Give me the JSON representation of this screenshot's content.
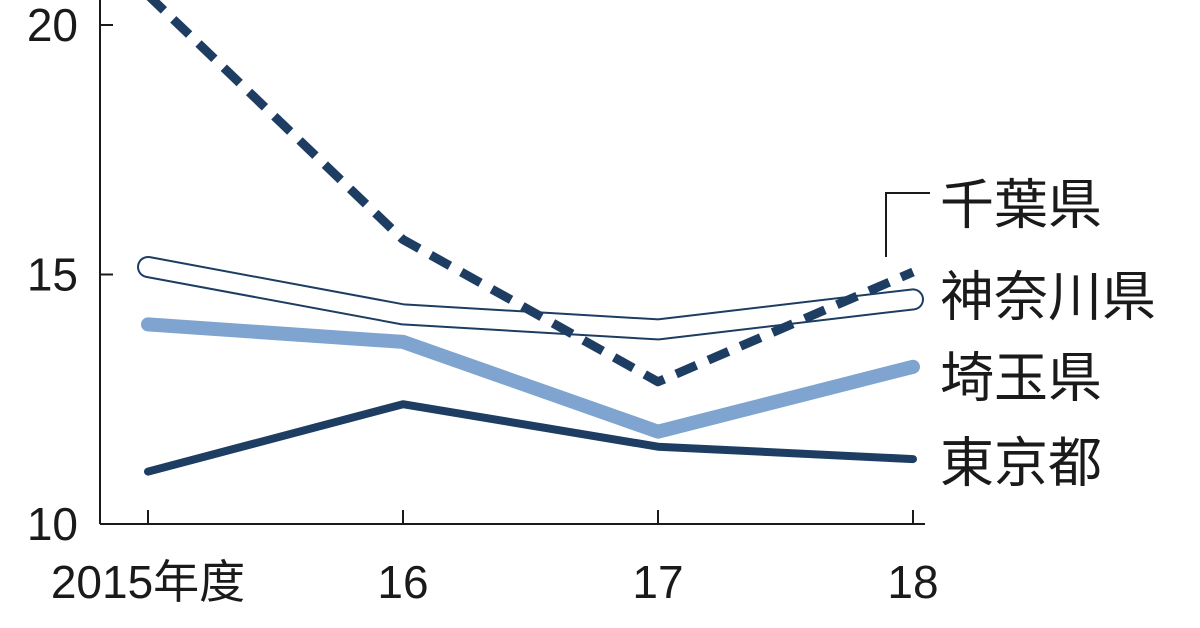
{
  "chart_data": {
    "type": "line",
    "title": "",
    "xlabel": "",
    "ylabel": "",
    "categories": [
      "2015年度",
      "16",
      "17",
      "18"
    ],
    "ylim": [
      10,
      20.4
    ],
    "y_ticks": [
      "10",
      "15",
      "20"
    ],
    "grid": false,
    "legend_placement": "right",
    "series": [
      {
        "name": "千葉県",
        "values": [
          20.6,
          15.7,
          12.85,
          15.05
        ],
        "style": "dashed",
        "color": "#1d3d63"
      },
      {
        "name": "神奈川県",
        "values": [
          15.15,
          14.2,
          13.9,
          14.5
        ],
        "style": "outline",
        "color": "#1d3d63"
      },
      {
        "name": "埼玉県",
        "values": [
          14.0,
          13.65,
          11.85,
          13.15
        ],
        "style": "thick",
        "color": "#7fa4cf"
      },
      {
        "name": "東京都",
        "values": [
          11.05,
          12.4,
          11.55,
          11.3
        ],
        "style": "solid",
        "color": "#1d3d63"
      }
    ]
  }
}
